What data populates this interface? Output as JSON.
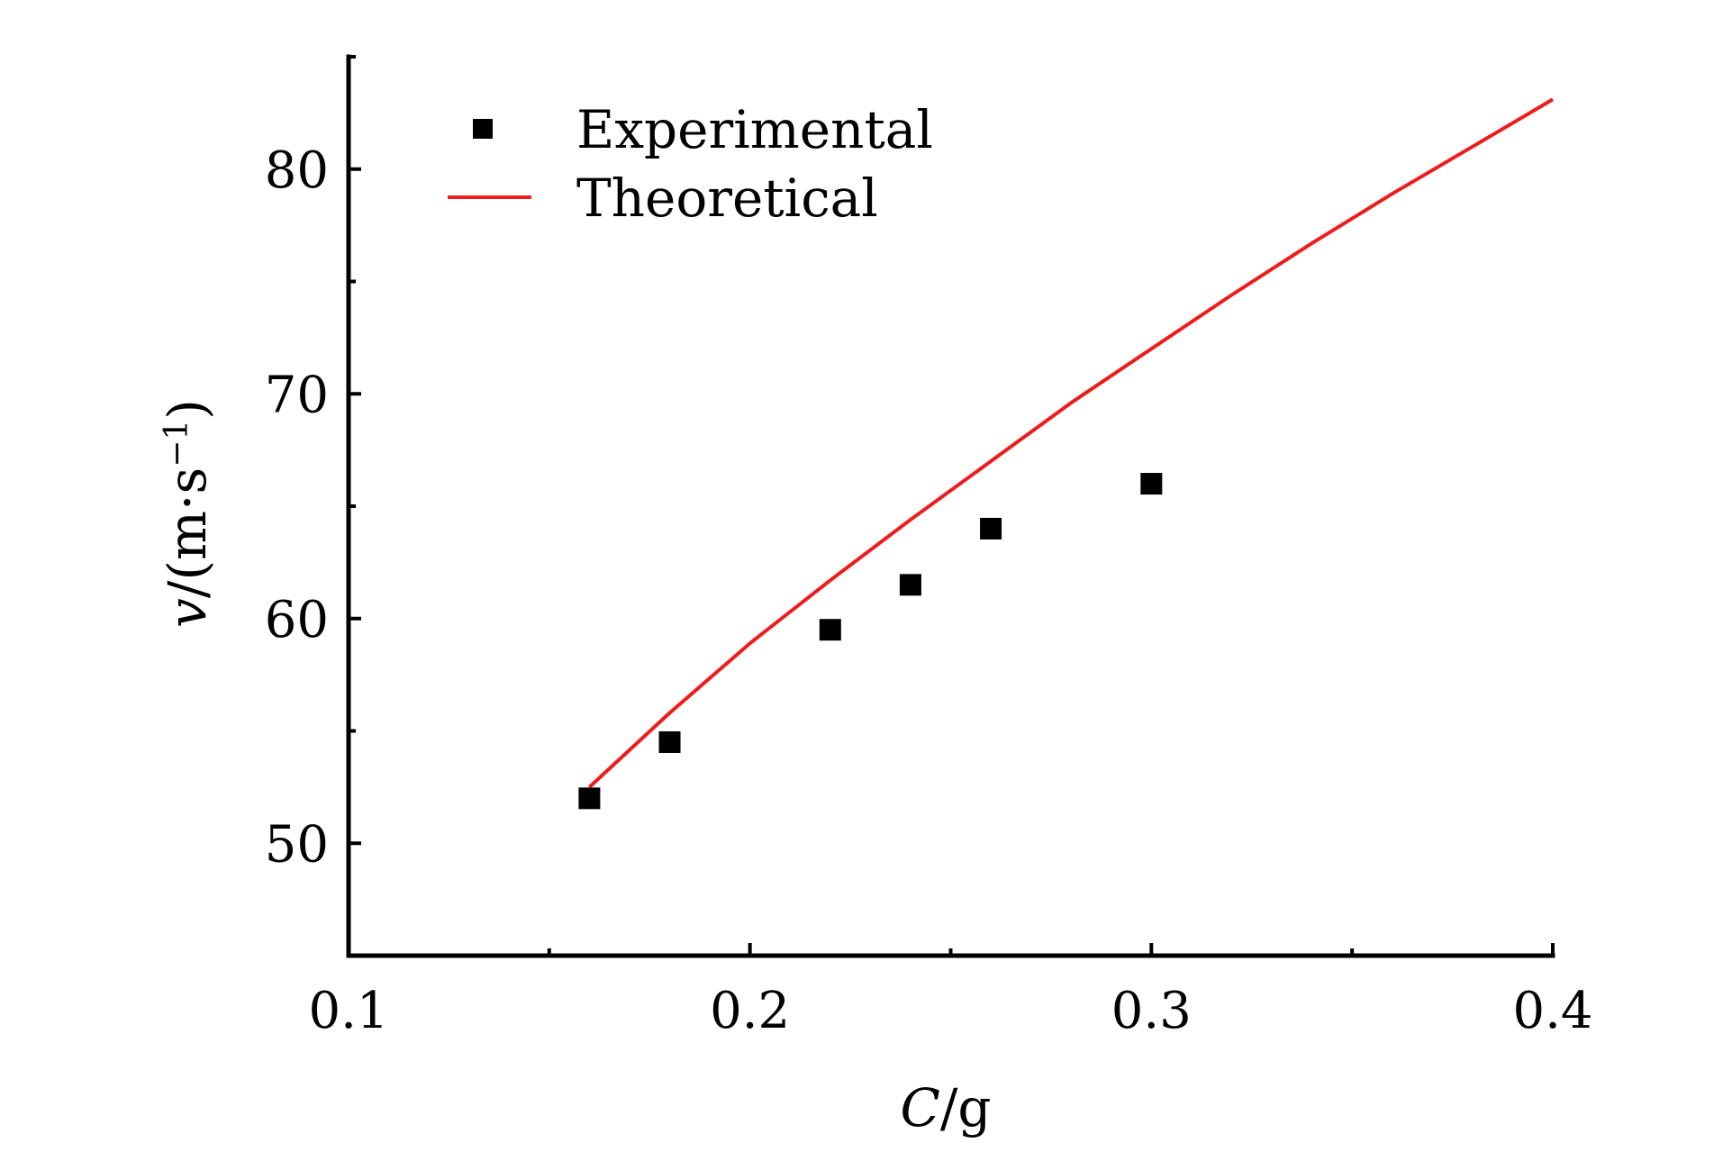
{
  "chart_data": {
    "type": "scatter",
    "title": "",
    "xlabel": {
      "var": "C",
      "unit": "/g"
    },
    "ylabel": {
      "var": "v",
      "unit": "/(m·s",
      "sup": "−1",
      "close": ")"
    },
    "xlim": [
      0.1,
      0.4
    ],
    "ylim": [
      45,
      85
    ],
    "xticks": [
      0.1,
      0.2,
      0.3,
      0.4
    ],
    "xtick_labels": [
      "0.1",
      "0.2",
      "0.3",
      "0.4"
    ],
    "xminor": [
      0.15,
      0.25,
      0.35
    ],
    "yticks": [
      50,
      60,
      70,
      80
    ],
    "ytick_labels": [
      "50",
      "60",
      "70",
      "80"
    ],
    "yminor": [
      55,
      65,
      75,
      85
    ],
    "grid": false,
    "legend_position": "top-left",
    "series": [
      {
        "name": "Experimental",
        "kind": "scatter",
        "marker": "square",
        "color": "#000000",
        "x": [
          0.16,
          0.18,
          0.22,
          0.24,
          0.26,
          0.3
        ],
        "y": [
          52.0,
          54.5,
          59.5,
          61.5,
          64.0,
          66.0
        ]
      },
      {
        "name": "Theoretical",
        "kind": "line",
        "color": "#ee1c1c",
        "x": [
          0.16,
          0.18,
          0.2,
          0.22,
          0.24,
          0.26,
          0.28,
          0.3,
          0.32,
          0.34,
          0.36,
          0.38,
          0.4
        ],
        "y": [
          52.5,
          55.8,
          58.9,
          61.7,
          64.4,
          67.0,
          69.6,
          72.0,
          74.4,
          76.7,
          78.9,
          81.0,
          83.1
        ]
      }
    ]
  }
}
